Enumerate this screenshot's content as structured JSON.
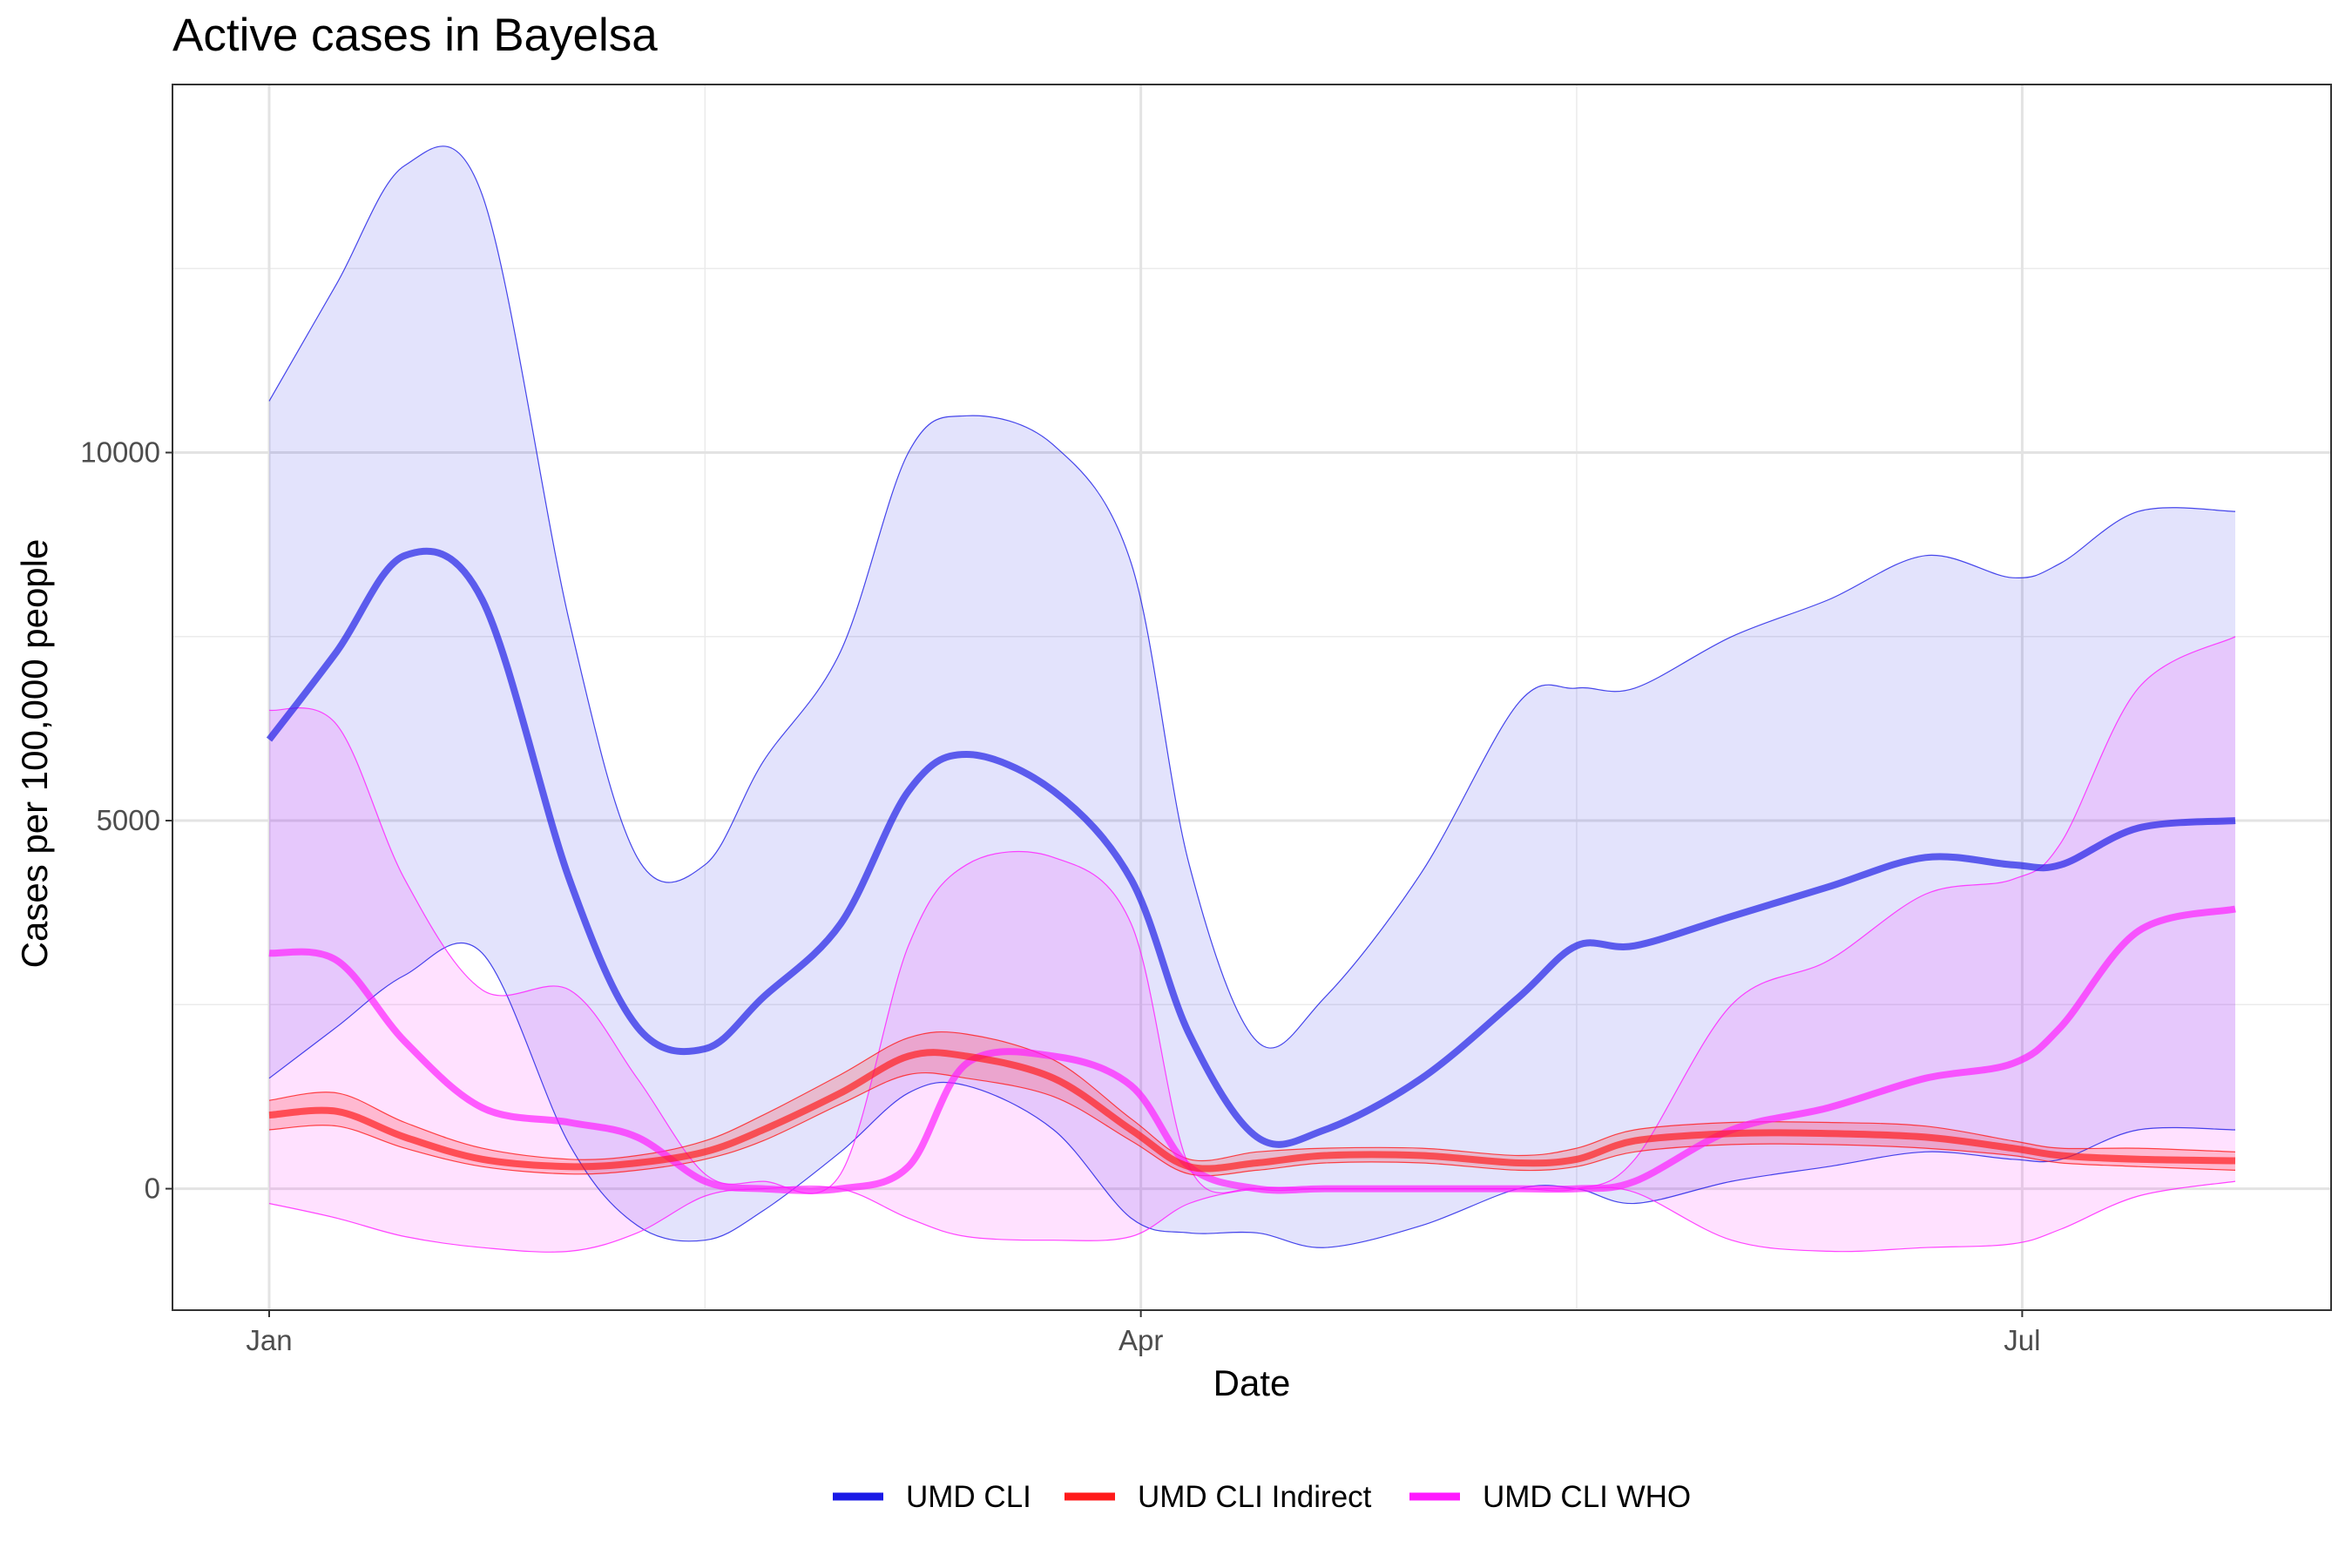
{
  "chart_data": {
    "type": "line",
    "title": "Active cases in Bayelsa",
    "xlabel": "Date",
    "ylabel": "Cases per 100,000 people",
    "x_range": [
      "2021-01-01",
      "2021-07-23"
    ],
    "ylim": [
      -1650,
      15000
    ],
    "x_ticks": [
      {
        "date": "2021-01-01",
        "label": "Jan"
      },
      {
        "date": "2021-04-01",
        "label": "Apr"
      },
      {
        "date": "2021-07-01",
        "label": "Jul"
      }
    ],
    "x_minor_gridlines": [
      "2021-02-15",
      "2021-05-16"
    ],
    "y_ticks": [
      0,
      5000,
      10000
    ],
    "y_minor_gridlines": [
      2500,
      7500,
      12500
    ],
    "grid": true,
    "legend_position": "bottom",
    "x": [
      "2021-01-01",
      "2021-01-08",
      "2021-01-15",
      "2021-01-23",
      "2021-02-01",
      "2021-02-08",
      "2021-02-15",
      "2021-02-21",
      "2021-03-01",
      "2021-03-08",
      "2021-03-14",
      "2021-03-23",
      "2021-03-31",
      "2021-04-06",
      "2021-04-13",
      "2021-04-20",
      "2021-04-30",
      "2021-05-10",
      "2021-05-16",
      "2021-05-22",
      "2021-06-01",
      "2021-06-11",
      "2021-06-21",
      "2021-06-30",
      "2021-07-05",
      "2021-07-13",
      "2021-07-23"
    ],
    "series": [
      {
        "name": "UMD CLI",
        "color": "#1a1ae6",
        "band_color": "#e3e3fb",
        "mid": [
          6100,
          7300,
          8600,
          8000,
          4200,
          2200,
          1900,
          2600,
          3600,
          5400,
          5900,
          5400,
          4200,
          2100,
          700,
          800,
          1500,
          2600,
          3300,
          3300,
          3700,
          4100,
          4500,
          4400,
          4400,
          4900,
          5000
        ],
        "lower": [
          1500,
          2200,
          2900,
          3200,
          600,
          -500,
          -700,
          -300,
          500,
          1300,
          1400,
          800,
          -400,
          -600,
          -600,
          -800,
          -500,
          0,
          0,
          -200,
          100,
          300,
          500,
          400,
          400,
          800,
          800
        ],
        "upper": [
          10700,
          12300,
          13900,
          13500,
          7700,
          4500,
          4400,
          5800,
          7300,
          10000,
          10500,
          10100,
          8500,
          4400,
          2000,
          2600,
          4300,
          6600,
          6800,
          6800,
          7500,
          8000,
          8600,
          8300,
          8500,
          9200,
          9200
        ]
      },
      {
        "name": "UMD CLI Indirect",
        "color": "#ff1a1a",
        "band_color": "#f5cad6",
        "mid": [
          1000,
          1050,
          700,
          400,
          300,
          350,
          500,
          800,
          1300,
          1800,
          1800,
          1500,
          800,
          300,
          350,
          450,
          450,
          350,
          400,
          650,
          750,
          750,
          700,
          550,
          450,
          400,
          380
        ],
        "lower": [
          800,
          850,
          550,
          300,
          200,
          250,
          400,
          650,
          1150,
          1550,
          1500,
          1250,
          650,
          200,
          250,
          350,
          350,
          250,
          300,
          500,
          600,
          600,
          550,
          450,
          350,
          300,
          250
        ],
        "upper": [
          1200,
          1300,
          900,
          550,
          400,
          450,
          650,
          1000,
          1550,
          2050,
          2100,
          1750,
          950,
          400,
          500,
          550,
          550,
          450,
          550,
          800,
          900,
          900,
          850,
          650,
          550,
          550,
          500
        ]
      },
      {
        "name": "UMD CLI WHO",
        "color": "#ff1aff",
        "band_color": "#ffdefe",
        "band_overlap_color": "#e6cbf9",
        "mid": [
          3200,
          3100,
          2000,
          1100,
          900,
          700,
          100,
          0,
          0,
          300,
          1700,
          1800,
          1400,
          300,
          0,
          0,
          0,
          0,
          0,
          100,
          800,
          1100,
          1500,
          1700,
          2200,
          3500,
          3800
        ],
        "lower": [
          -200,
          -400,
          -650,
          -800,
          -850,
          -600,
          -100,
          0,
          0,
          -400,
          -650,
          -700,
          -650,
          -200,
          0,
          0,
          0,
          0,
          0,
          -50,
          -700,
          -850,
          -800,
          -750,
          -550,
          -100,
          100
        ],
        "upper": [
          6500,
          6300,
          4200,
          2700,
          2700,
          1500,
          200,
          100,
          200,
          3300,
          4400,
          4500,
          3600,
          300,
          0,
          0,
          0,
          0,
          0,
          400,
          2500,
          3100,
          4000,
          4200,
          4700,
          6800,
          7500
        ]
      }
    ]
  }
}
